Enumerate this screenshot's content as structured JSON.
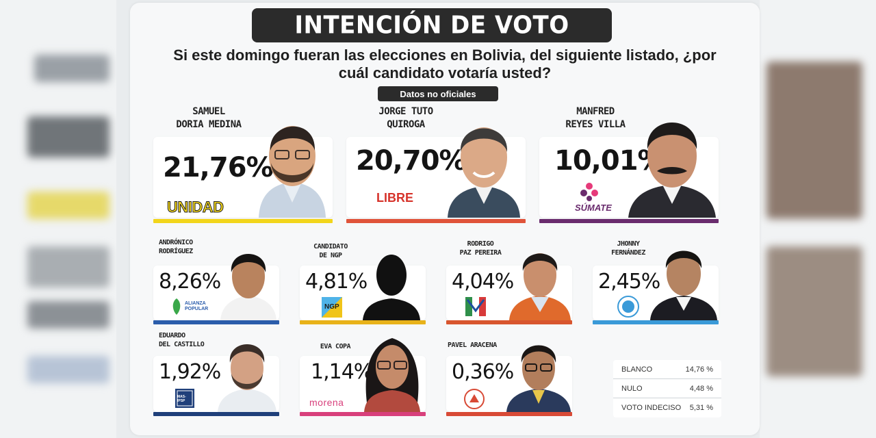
{
  "title": "INTENCIÓN DE VOTO",
  "question": "Si este domingo fueran las elecciones en Bolivia, del siguiente listado, ¿por cuál candidato votaría usted?",
  "note": "Datos no oficiales",
  "colors": {
    "unidad": "#f2d51b",
    "libre": "#e0533a",
    "sumate": "#6a2c6e",
    "alianza_popular": "#2b5dab",
    "ngp": "#e8b21a",
    "paz": "#d8562f",
    "fernandez": "#3a9ad8",
    "del_castillo": "#1f3f7a",
    "copa": "#d8407c",
    "aracena": "#d84a36"
  },
  "chart_data": {
    "type": "bar",
    "categories": [
      "SAMUEL DORIA MEDINA",
      "JORGE TUTO QUIROGA",
      "MANFRED REYES VILLA",
      "ANDRÓNICO RODRÍGUEZ",
      "CANDIDATO DE NGP",
      "RODRIGO PAZ PEREIRA",
      "JHONNY FERNÁNDEZ",
      "EDUARDO DEL CASTILLO",
      "EVA COPA",
      "PAVEL ARACENA"
    ],
    "values": [
      21.76,
      20.7,
      10.01,
      8.26,
      4.81,
      4.04,
      2.45,
      1.92,
      1.14,
      0.36
    ],
    "labels": [
      "21,76%",
      "20,70%",
      "10,01%",
      "8,26%",
      "4,81%",
      "4,04%",
      "2,45%",
      "1,92%",
      "1,14%",
      "0,36%"
    ],
    "title": "INTENCIÓN DE VOTO",
    "xlabel": "",
    "ylabel": ""
  },
  "candidates": [
    {
      "name": "SAMUEL\nDORIA MEDINA",
      "pct": "21,76%",
      "party": "UNIDAD"
    },
    {
      "name": "JORGE TUTO\nQUIROGA",
      "pct": "20,70%",
      "party": "LIBRE"
    },
    {
      "name": "MANFRED\nREYES VILLA",
      "pct": "10,01%",
      "party": "SÚMATE"
    },
    {
      "name": "ANDRÓNICO\nRODRÍGUEZ",
      "pct": "8,26%",
      "party": "ALIANZA POPULAR"
    },
    {
      "name": "CANDIDATO\nDE NGP",
      "pct": "4,81%",
      "party": "NGP"
    },
    {
      "name": "RODRIGO\nPAZ PEREIRA",
      "pct": "4,04%",
      "party": "PDC"
    },
    {
      "name": "JHONNY\nFERNÁNDEZ",
      "pct": "2,45%",
      "party": "UCS"
    },
    {
      "name": "EDUARDO\nDEL CASTILLO",
      "pct": "1,92%",
      "party": "MAS-IPSP"
    },
    {
      "name": "EVA COPA",
      "pct": "1,14%",
      "party": "morena"
    },
    {
      "name": "PAVEL ARACENA",
      "pct": "0,36%",
      "party": "ADN"
    }
  ],
  "others": [
    {
      "label": "BLANCO",
      "value": "14,76 %"
    },
    {
      "label": "NULO",
      "value": "4,48 %"
    },
    {
      "label": "VOTO INDECISO",
      "value": "5,31 %"
    }
  ]
}
